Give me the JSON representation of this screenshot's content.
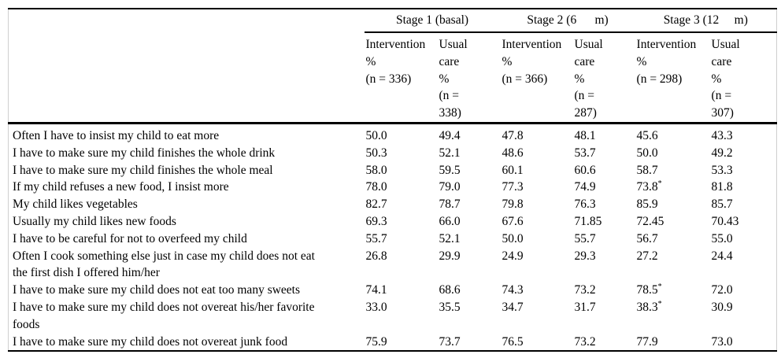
{
  "table": {
    "stage_headers": [
      "Stage 1 (basal)",
      "Stage 2 (6      m)",
      "Stage 3 (12     m)"
    ],
    "column_headers": [
      "Intervention\n%\n(n = 336)",
      "Usual\ncare\n%\n(n =\n338)",
      "Intervention\n%\n(n = 366)",
      "Usual\ncare\n%\n(n =\n287)",
      "Intervention\n%\n(n = 298)",
      "Usual\ncare\n%\n(n =\n307)"
    ],
    "rows": [
      {
        "label": "Often I have to insist my child to eat more",
        "values": [
          "50.0",
          "49.4",
          "47.8",
          "48.1",
          "45.6",
          "43.3"
        ]
      },
      {
        "label": "I have to make sure my child finishes the whole drink",
        "values": [
          "50.3",
          "52.1",
          "48.6",
          "53.7",
          "50.0",
          "49.2"
        ]
      },
      {
        "label": "I have to make sure my child finishes the whole meal",
        "values": [
          "58.0",
          "59.5",
          "60.1",
          "60.6",
          "58.7",
          "53.3"
        ]
      },
      {
        "label": "If my child refuses a new food, I insist more",
        "values": [
          "78.0",
          "79.0",
          "77.3",
          "74.9",
          "73.8*",
          "81.8"
        ]
      },
      {
        "label": "My child likes vegetables",
        "values": [
          "82.7",
          "78.7",
          "79.8",
          "76.3",
          "85.9",
          "85.7"
        ]
      },
      {
        "label": "Usually my child likes new foods",
        "values": [
          "69.3",
          "66.0",
          "67.6",
          "71.85",
          "72.45",
          "70.43"
        ]
      },
      {
        "label": "I have to be careful for not to overfeed my child",
        "values": [
          "55.7",
          "52.1",
          "50.0",
          "55.7",
          "56.7",
          "55.0"
        ]
      },
      {
        "label": "Often I cook something else just in case my child does not eat\nthe first dish I offered him/her",
        "values": [
          "26.8",
          "29.9",
          "24.9",
          "29.3",
          "27.2",
          "24.4"
        ]
      },
      {
        "label": "I have to make sure my child does not eat too many sweets",
        "values": [
          "74.1",
          "68.6",
          "74.3",
          "73.2",
          "78.5*",
          "72.0"
        ]
      },
      {
        "label": "I have to make sure my child does not overeat his/her favorite\nfoods",
        "values": [
          "33.0",
          "35.5",
          "34.7",
          "31.7",
          "38.3*",
          "30.9"
        ]
      },
      {
        "label": "I have to make sure my child does not overeat junk food",
        "values": [
          "75.9",
          "73.7",
          "76.5",
          "73.2",
          "77.9",
          "73.0"
        ]
      }
    ],
    "colors": {
      "rule": "#000000",
      "side_border": "#cfcfcf",
      "text": "#000000",
      "background": "#ffffff"
    }
  }
}
